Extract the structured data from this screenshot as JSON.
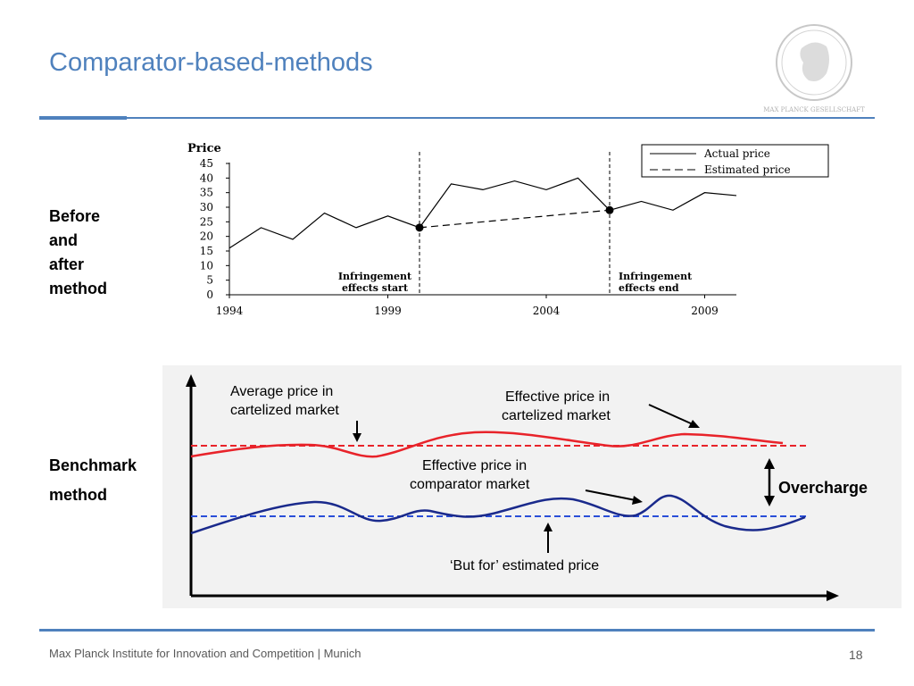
{
  "slide": {
    "title": "Comparator-based-methods",
    "footer": "Max Planck Institute for Innovation and Competition | Munich",
    "page_number": "18",
    "logo_text": "MAX PLANCK GESELLSCHAFT",
    "accent_color": "#4f81bd"
  },
  "labels": {
    "before_after": [
      "Before",
      "and",
      "after",
      "method"
    ],
    "benchmark": [
      "Benchmark",
      "method"
    ]
  },
  "chart_data": [
    {
      "type": "line",
      "ylabel": "Price",
      "ylim": [
        0,
        45
      ],
      "yticks": [
        "0",
        "5",
        "10",
        "15",
        "20",
        "25",
        "30",
        "35",
        "40",
        "45"
      ],
      "xticks": [
        "1994",
        "1999",
        "2004",
        "2009"
      ],
      "xlim": [
        1994,
        2010
      ],
      "legend_position": "top-right",
      "series": [
        {
          "name": "Actual price",
          "style": "solid",
          "x": [
            1994,
            1995,
            1996,
            1997,
            1998,
            1999,
            2000,
            2001,
            2002,
            2003,
            2004,
            2005,
            2006,
            2007,
            2008,
            2009,
            2010
          ],
          "values": [
            16,
            23,
            19,
            28,
            23,
            27,
            23,
            38,
            36,
            39,
            36,
            40,
            29,
            32,
            29,
            35,
            34
          ]
        },
        {
          "name": "Estimated price",
          "style": "dashed",
          "x": [
            2000,
            2006
          ],
          "values": [
            23,
            29
          ]
        }
      ],
      "markers": [
        {
          "x": 2000,
          "y": 23
        },
        {
          "x": 2006,
          "y": 29
        }
      ],
      "annotations": [
        {
          "x": 2000,
          "lines": [
            "Infringement",
            "effects start"
          ]
        },
        {
          "x": 2006,
          "lines": [
            "Infringement",
            "effects end"
          ]
        }
      ]
    },
    {
      "type": "line",
      "series": [
        {
          "name": "Effective price in cartelized market",
          "color": "#e8232a",
          "style": "solid"
        },
        {
          "name": "Average price in cartelized market",
          "color": "#e8232a",
          "style": "dashed"
        },
        {
          "name": "Effective price in comparator market",
          "color": "#1a2a8c",
          "style": "solid"
        },
        {
          "name": "‘But for’ estimated price",
          "color": "#2a4fd8",
          "style": "dashed"
        }
      ],
      "annotations": {
        "avg_cartel": [
          "Average price in",
          "cartelized market"
        ],
        "eff_cartel": [
          "Effective price in",
          "cartelized market"
        ],
        "eff_comp": [
          "Effective price in",
          "comparator market"
        ],
        "but_for": "‘But for’ estimated price",
        "overcharge": "Overcharge"
      }
    }
  ]
}
